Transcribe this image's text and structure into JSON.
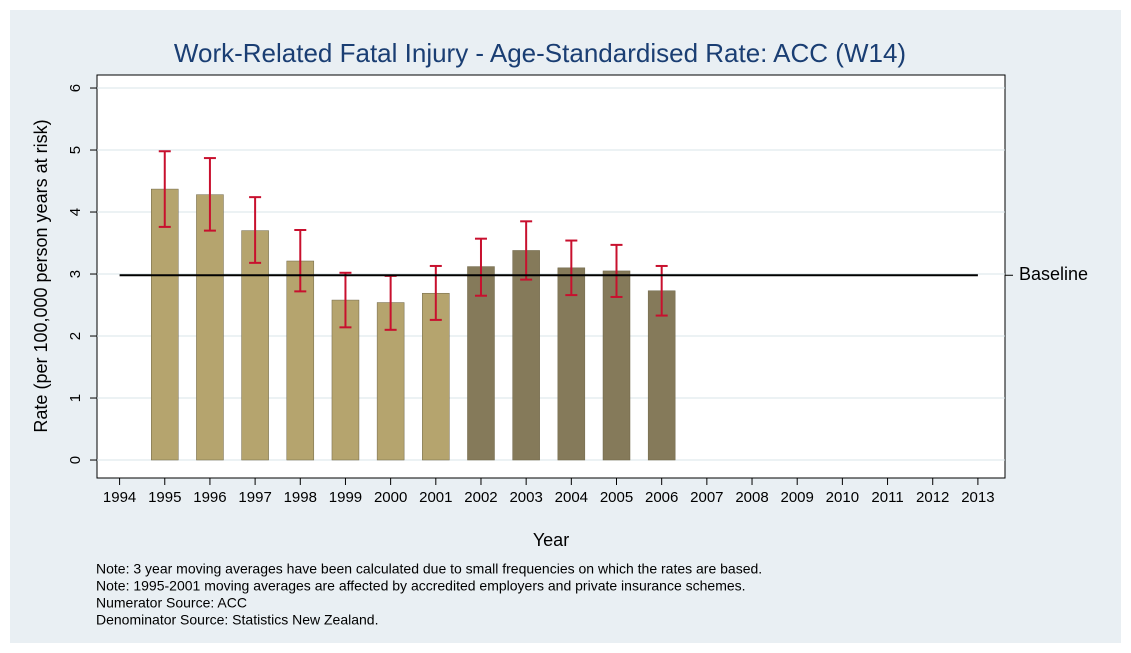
{
  "chart_data": {
    "type": "bar",
    "title": "Work-Related Fatal Injury - Age-Standardised Rate: ACC (W14)",
    "x_label": "Year",
    "y_label": "Rate (per 100,000 person years at risk)",
    "x": [
      1995,
      1996,
      1997,
      1998,
      1999,
      2000,
      2001,
      2002,
      2003,
      2004,
      2005,
      2006
    ],
    "values": [
      4.37,
      4.28,
      3.7,
      3.21,
      2.58,
      2.54,
      2.69,
      3.12,
      3.38,
      3.1,
      3.05,
      2.73
    ],
    "lower": [
      3.76,
      3.7,
      3.18,
      2.72,
      2.14,
      2.1,
      2.26,
      2.65,
      2.91,
      2.66,
      2.63,
      2.33
    ],
    "upper": [
      4.98,
      4.87,
      4.24,
      3.71,
      3.02,
      2.97,
      3.13,
      3.57,
      3.85,
      3.54,
      3.47,
      3.13
    ],
    "colors": [
      "#b5a46e",
      "#b5a46e",
      "#b5a46e",
      "#b5a46e",
      "#b5a46e",
      "#b5a46e",
      "#b5a46e",
      "#857a5a",
      "#857a5a",
      "#857a5a",
      "#857a5a",
      "#857a5a"
    ],
    "error_color": "#c8102e",
    "baseline": {
      "label": "Baseline",
      "value": 2.98
    },
    "xlim": [
      1993.5,
      2013.6
    ],
    "xticks": [
      1994,
      1995,
      1996,
      1997,
      1998,
      1999,
      2000,
      2001,
      2002,
      2003,
      2004,
      2005,
      2006,
      2007,
      2008,
      2009,
      2010,
      2011,
      2012,
      2013
    ],
    "ylim": [
      -0.29,
      6.21
    ],
    "yticks": [
      0,
      1,
      2,
      3,
      4,
      5,
      6
    ],
    "grid": true,
    "notes": [
      "Note: 3 year moving averages have been calculated due to small frequencies on which the rates are based.",
      "Note: 1995-2001 moving averages are affected by accredited employers and private insurance schemes.",
      "Numerator Source: ACC",
      "Denominator Source: Statistics New Zealand."
    ]
  }
}
